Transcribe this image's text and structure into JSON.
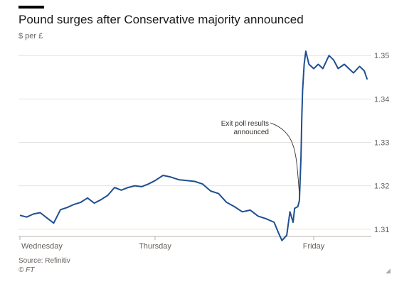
{
  "header": {
    "title": "Pound surges after Conservative majority announced",
    "subtitle": "$ per £"
  },
  "footer": {
    "source": "Source: Refinitiv",
    "credit": "© FT",
    "resize_icon": "resize-corner-icon"
  },
  "chart_data": {
    "type": "line",
    "title": "Pound surges after Conservative majority announced",
    "ylabel": "$ per £",
    "xlabel": "",
    "ylim": [
      1.308,
      1.352
    ],
    "xlim": [
      0,
      3.35
    ],
    "y_ticks": [
      1.31,
      1.32,
      1.33,
      1.34,
      1.35
    ],
    "y_tick_labels": [
      "1.31",
      "1.32",
      "1.33",
      "1.34",
      "1.35"
    ],
    "x_ticks": [
      0,
      1,
      2
    ],
    "x_tick_labels": [
      "Wednesday",
      "Thursday",
      "Friday"
    ],
    "grid": true,
    "line_color": "#1f4f8f",
    "annotation": {
      "text_lines": [
        "Exit poll results",
        "announced"
      ],
      "x": 1.915,
      "y": 1.3175
    },
    "series": [
      {
        "name": "",
        "x": [
          0,
          0.05,
          0.1,
          0.15,
          0.2,
          0.25,
          0.3,
          0.35,
          0.4,
          0.45,
          0.5,
          0.55,
          0.6,
          0.65,
          0.7,
          0.75,
          0.8,
          0.85,
          0.9,
          0.95,
          1.0,
          1.05,
          1.1,
          1.15,
          1.2,
          1.25,
          1.3,
          1.35,
          1.4,
          1.45,
          1.5,
          1.55,
          1.6,
          1.65,
          1.7,
          1.75,
          1.78,
          1.8,
          1.83,
          1.85,
          1.87,
          1.88,
          1.9,
          1.91,
          1.92,
          1.925,
          1.93,
          1.94,
          1.95,
          1.97,
          2.0,
          2.03,
          2.06,
          2.1,
          2.13,
          2.16,
          2.2,
          2.23,
          2.26,
          2.3,
          2.33,
          2.35
        ],
        "values": [
          1.3132,
          1.3128,
          1.3135,
          1.3138,
          1.3126,
          1.3114,
          1.3145,
          1.315,
          1.3157,
          1.3162,
          1.3172,
          1.316,
          1.3168,
          1.3178,
          1.3196,
          1.319,
          1.3196,
          1.32,
          1.3198,
          1.3204,
          1.3212,
          1.3224,
          1.322,
          1.3214,
          1.3212,
          1.321,
          1.3204,
          1.3188,
          1.3182,
          1.3162,
          1.3152,
          1.314,
          1.3144,
          1.313,
          1.3124,
          1.3116,
          1.309,
          1.3074,
          1.3086,
          1.314,
          1.3116,
          1.3148,
          1.3152,
          1.3166,
          1.327,
          1.336,
          1.342,
          1.348,
          1.351,
          1.348,
          1.347,
          1.348,
          1.347,
          1.35,
          1.349,
          1.347,
          1.348,
          1.347,
          1.346,
          1.3475,
          1.3465,
          1.3445
        ]
      }
    ]
  }
}
